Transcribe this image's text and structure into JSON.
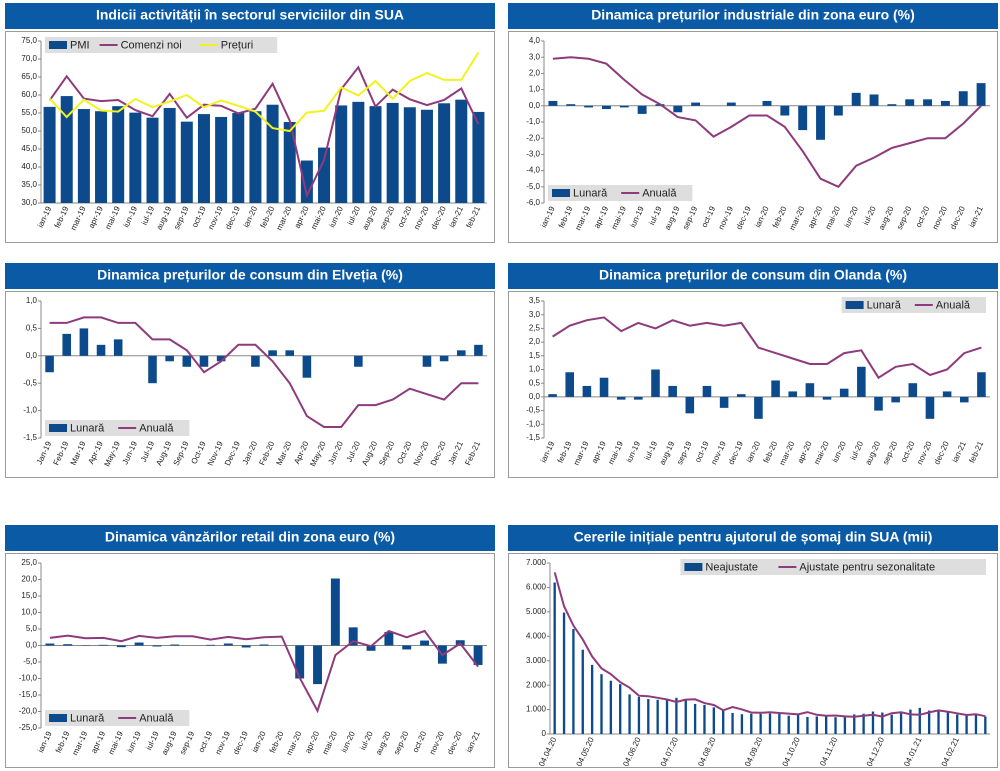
{
  "chart_data": [
    {
      "type": "combo",
      "title": "Indicii activității în sectorul serviciilor din SUA",
      "categories": [
        "ian-19",
        "feb-19",
        "mar-19",
        "apr-19",
        "mai-19",
        "iun-19",
        "iul-19",
        "aug-19",
        "sep-19",
        "oct-19",
        "nov-19",
        "dec-19",
        "ian-20",
        "feb-20",
        "mar-20",
        "apr-20",
        "mai-20",
        "iun-20",
        "iul-20",
        "aug-20",
        "sep-20",
        "oct-20",
        "nov-20",
        "dec-20",
        "ian-21",
        "feb-21"
      ],
      "series": [
        {
          "name": "PMI",
          "kind": "bar",
          "color": "#0d4a8c",
          "values": [
            56.7,
            59.7,
            56.1,
            55.5,
            56.9,
            55.1,
            53.7,
            56.4,
            52.6,
            54.7,
            53.9,
            55.0,
            55.5,
            57.3,
            52.5,
            41.8,
            45.4,
            57.1,
            58.1,
            56.9,
            57.8,
            56.6,
            55.9,
            57.7,
            58.7,
            55.3
          ]
        },
        {
          "name": "Comenzi noi",
          "kind": "line",
          "color": "#8e3a7c",
          "values": [
            58.5,
            65.2,
            59.0,
            58.3,
            58.6,
            55.8,
            54.1,
            60.3,
            53.7,
            57.3,
            57.0,
            54.9,
            56.2,
            63.1,
            52.9,
            32.1,
            41.9,
            61.6,
            67.7,
            56.8,
            61.5,
            58.8,
            57.2,
            58.6,
            61.8,
            51.9
          ]
        },
        {
          "name": "Prețuri",
          "kind": "line",
          "color": "#f2f21f",
          "values": [
            59.0,
            53.9,
            58.7,
            55.7,
            55.4,
            58.9,
            56.6,
            58.2,
            60.0,
            56.6,
            58.5,
            57.0,
            55.4,
            50.8,
            50.0,
            55.1,
            55.6,
            62.1,
            59.9,
            63.9,
            59.0,
            63.9,
            66.1,
            64.2,
            64.2,
            71.8
          ]
        }
      ],
      "ylim": [
        30,
        75
      ],
      "yticks": [
        {
          "value": 30,
          "label": "30,0"
        },
        {
          "value": 35,
          "label": "35,0"
        },
        {
          "value": 40,
          "label": "40,0"
        },
        {
          "value": 45,
          "label": "45,0"
        },
        {
          "value": 50,
          "label": "50,0"
        },
        {
          "value": 55,
          "label": "55,0"
        },
        {
          "value": 60,
          "label": "60,0"
        },
        {
          "value": 65,
          "label": "65,0"
        },
        {
          "value": 70,
          "label": "70,0"
        },
        {
          "value": 75,
          "label": "75,0"
        }
      ],
      "legend": "top-left"
    },
    {
      "type": "combo",
      "title": "Dinamica prețurilor industriale din zona euro (%)",
      "categories": [
        "ian-19",
        "feb-19",
        "mar-19",
        "apr-19",
        "mai-19",
        "iun-19",
        "iul-19",
        "aug-19",
        "sep-19",
        "oct-19",
        "nov-19",
        "dec-19",
        "ian-20",
        "feb-20",
        "mar-20",
        "apr-20",
        "mai-20",
        "iun-20",
        "iul-20",
        "aug-20",
        "sep-20",
        "oct-20",
        "nov-20",
        "dec-20",
        "ian-21"
      ],
      "series": [
        {
          "name": "Lunară",
          "kind": "bar",
          "color": "#0d4a8c",
          "values": [
            0.3,
            0.1,
            -0.1,
            -0.2,
            -0.1,
            -0.5,
            0.1,
            -0.4,
            0.2,
            0.0,
            0.2,
            0.0,
            0.3,
            -0.6,
            -1.5,
            -2.1,
            -0.6,
            0.8,
            0.7,
            0.1,
            0.4,
            0.4,
            0.3,
            0.9,
            1.4
          ]
        },
        {
          "name": "Anuală",
          "kind": "line",
          "color": "#8e3a7c",
          "values": [
            2.9,
            3.0,
            2.9,
            2.6,
            1.6,
            0.7,
            0.1,
            -0.7,
            -0.9,
            -1.9,
            -1.3,
            -0.6,
            -0.6,
            -1.3,
            -2.8,
            -4.5,
            -5.0,
            -3.7,
            -3.2,
            -2.6,
            -2.3,
            -2.0,
            -2.0,
            -1.1,
            0.0
          ]
        }
      ],
      "ylim": [
        -6,
        4
      ],
      "yticks": [
        {
          "value": -6,
          "label": "-6,0"
        },
        {
          "value": -5,
          "label": "-5,0"
        },
        {
          "value": -4,
          "label": "-4,0"
        },
        {
          "value": -3,
          "label": "-3,0"
        },
        {
          "value": -2,
          "label": "-2,0"
        },
        {
          "value": -1,
          "label": "-1,0"
        },
        {
          "value": 0,
          "label": "0,0"
        },
        {
          "value": 1,
          "label": "1,0"
        },
        {
          "value": 2,
          "label": "2,0"
        },
        {
          "value": 3,
          "label": "3,0"
        },
        {
          "value": 4,
          "label": "4,0"
        }
      ],
      "legend": "bottom-left"
    },
    {
      "type": "combo",
      "title": "Dinamica prețurilor de consum din Elveția (%)",
      "categories": [
        "Jan-19",
        "Feb-19",
        "Mar-19",
        "Apr-19",
        "May-19",
        "Jun-19",
        "Jul-19",
        "Aug-19",
        "Sep-19",
        "Oct-19",
        "Nov-19",
        "Dec-19",
        "Jan-20",
        "Feb-20",
        "Mar-20",
        "Apr-20",
        "May-20",
        "Jun-20",
        "Jul-20",
        "Aug-20",
        "Sep-20",
        "Oct-20",
        "Nov-20",
        "Dec-20",
        "Jan-21",
        "Feb-21"
      ],
      "series": [
        {
          "name": "Lunară",
          "kind": "bar",
          "color": "#0d4a8c",
          "values": [
            -0.3,
            0.4,
            0.5,
            0.2,
            0.3,
            0.0,
            -0.5,
            -0.1,
            -0.2,
            -0.2,
            -0.1,
            0.0,
            -0.2,
            0.1,
            0.1,
            -0.4,
            0.0,
            0.0,
            -0.2,
            0.0,
            0.0,
            0.0,
            -0.2,
            -0.1,
            0.1,
            0.2
          ]
        },
        {
          "name": "Anuală",
          "kind": "line",
          "color": "#8e3a7c",
          "values": [
            0.6,
            0.6,
            0.7,
            0.7,
            0.6,
            0.6,
            0.3,
            0.3,
            0.1,
            -0.3,
            -0.1,
            0.2,
            0.2,
            -0.1,
            -0.5,
            -1.1,
            -1.3,
            -1.3,
            -0.9,
            -0.9,
            -0.8,
            -0.6,
            -0.7,
            -0.8,
            -0.5,
            -0.5
          ]
        }
      ],
      "ylim": [
        -1.5,
        1.0
      ],
      "yticks": [
        {
          "value": -1.5,
          "label": "-1,5"
        },
        {
          "value": -1.0,
          "label": "-1,0"
        },
        {
          "value": -0.5,
          "label": "-0,5"
        },
        {
          "value": 0,
          "label": "0,0"
        },
        {
          "value": 0.5,
          "label": "0,5"
        },
        {
          "value": 1.0,
          "label": "1,0"
        }
      ],
      "legend": "bottom-left"
    },
    {
      "type": "combo",
      "title": "Dinamica prețurilor de consum din Olanda (%)",
      "categories": [
        "ian-19",
        "feb-19",
        "mar-19",
        "apr-19",
        "mai-19",
        "iun-19",
        "iul-19",
        "aug-19",
        "sep-19",
        "oct-19",
        "nov-19",
        "dec-19",
        "ian-20",
        "feb-20",
        "mar-20",
        "apr-20",
        "mai-20",
        "iun-20",
        "iul-20",
        "aug-20",
        "sep-20",
        "oct-20",
        "nov-20",
        "dec-20",
        "ian-21",
        "feb-21"
      ],
      "series": [
        {
          "name": "Lunară",
          "kind": "bar",
          "color": "#0d4a8c",
          "values": [
            0.1,
            0.9,
            0.4,
            0.7,
            -0.1,
            -0.1,
            1.0,
            0.4,
            -0.6,
            0.4,
            -0.4,
            0.1,
            -0.8,
            0.6,
            0.2,
            0.5,
            -0.1,
            0.3,
            1.1,
            -0.5,
            -0.2,
            0.5,
            -0.8,
            0.2,
            -0.2,
            0.9
          ]
        },
        {
          "name": "Anuală",
          "kind": "line",
          "color": "#8e3a7c",
          "values": [
            2.2,
            2.6,
            2.8,
            2.9,
            2.4,
            2.7,
            2.5,
            2.8,
            2.6,
            2.7,
            2.6,
            2.7,
            1.8,
            1.6,
            1.4,
            1.2,
            1.2,
            1.6,
            1.7,
            0.7,
            1.1,
            1.2,
            0.8,
            1.0,
            1.6,
            1.8
          ]
        }
      ],
      "ylim": [
        -1.5,
        3.5
      ],
      "yticks": [
        {
          "value": -1.5,
          "label": "-1,5"
        },
        {
          "value": -1.0,
          "label": "-1,0"
        },
        {
          "value": -0.5,
          "label": "-0,5"
        },
        {
          "value": 0,
          "label": "0,0"
        },
        {
          "value": 0.5,
          "label": "0,5"
        },
        {
          "value": 1.0,
          "label": "1,0"
        },
        {
          "value": 1.5,
          "label": "1,5"
        },
        {
          "value": 2.0,
          "label": "2,0"
        },
        {
          "value": 2.5,
          "label": "2,5"
        },
        {
          "value": 3.0,
          "label": "3,0"
        },
        {
          "value": 3.5,
          "label": "3,5"
        }
      ],
      "legend": "top-right"
    },
    {
      "type": "combo",
      "title": "Dinamica vânzărilor retail din zona euro (%)",
      "categories": [
        "ian-19",
        "feb-19",
        "mar-19",
        "apr-19",
        "mai-19",
        "iun-19",
        "iul-19",
        "aug-19",
        "sep-19",
        "oct-19",
        "nov-19",
        "dec-19",
        "ian-20",
        "feb-20",
        "mar-20",
        "apr-20",
        "mai-20",
        "iun-20",
        "iul-20",
        "aug-20",
        "sep-20",
        "oct-20",
        "nov-20",
        "dec-20",
        "ian-21"
      ],
      "series": [
        {
          "name": "Lunară",
          "kind": "bar",
          "color": "#0d4a8c",
          "values": [
            0.6,
            0.4,
            0.1,
            0.2,
            -0.5,
            0.9,
            -0.3,
            0.3,
            0.0,
            0.2,
            0.6,
            -0.6,
            0.3,
            0.0,
            -10.0,
            -11.7,
            20.3,
            5.5,
            -1.6,
            4.1,
            -1.2,
            1.5,
            -5.5,
            1.6,
            -5.9
          ]
        },
        {
          "name": "Anuală",
          "kind": "line",
          "color": "#8e3a7c",
          "values": [
            2.3,
            3.0,
            2.2,
            2.3,
            1.3,
            2.9,
            2.3,
            2.8,
            2.8,
            1.8,
            2.6,
            1.9,
            2.5,
            2.7,
            -9.8,
            -19.8,
            -2.9,
            1.3,
            -0.2,
            4.4,
            2.5,
            4.4,
            -2.9,
            0.6,
            -6.4
          ]
        }
      ],
      "ylim": [
        -25,
        25
      ],
      "yticks": [
        {
          "value": -25,
          "label": "-25,0"
        },
        {
          "value": -20,
          "label": "-20,0"
        },
        {
          "value": -15,
          "label": "-15,0"
        },
        {
          "value": -10,
          "label": "-10,0"
        },
        {
          "value": -5,
          "label": "-5,0"
        },
        {
          "value": 0,
          "label": "0,0"
        },
        {
          "value": 5,
          "label": "5,0"
        },
        {
          "value": 10,
          "label": "10,0"
        },
        {
          "value": 15,
          "label": "15,0"
        },
        {
          "value": 20,
          "label": "20,0"
        },
        {
          "value": 25,
          "label": "25,0"
        }
      ],
      "legend": "bottom-left"
    },
    {
      "type": "combo",
      "title": "Cererile inițiale pentru ajutorul de șomaj din SUA (mii)",
      "categories": [
        "04.04.20",
        null,
        null,
        null,
        "04.05.20",
        null,
        null,
        null,
        null,
        "04.06.20",
        null,
        null,
        null,
        "04.07.20",
        null,
        null,
        null,
        "04.08.20",
        null,
        null,
        null,
        null,
        "04.09.20",
        null,
        null,
        null,
        "04.10.20",
        null,
        null,
        null,
        "04.11.20",
        null,
        null,
        null,
        null,
        "04.12.20",
        null,
        null,
        null,
        "04.01.21",
        null,
        null,
        null,
        "04.02.21",
        null,
        null,
        null
      ],
      "series": [
        {
          "name": "Neajustate",
          "kind": "bar",
          "color": "#0d4a8c",
          "values": [
            6200,
            4970,
            4300,
            3450,
            2830,
            2450,
            2180,
            2040,
            1620,
            1520,
            1430,
            1400,
            1440,
            1480,
            1380,
            1230,
            1190,
            1090,
            980,
            860,
            810,
            830,
            830,
            840,
            890,
            750,
            780,
            700,
            720,
            740,
            690,
            760,
            800,
            830,
            920,
            880,
            790,
            880,
            1000,
            1070,
            960,
            920,
            880,
            800,
            780,
            800,
            720
          ]
        },
        {
          "name": "Ajustate pentru sezonalitate",
          "kind": "line",
          "color": "#8e3a7c",
          "values": [
            6615,
            5237,
            4442,
            3867,
            3176,
            2687,
            2446,
            2123,
            1897,
            1566,
            1542,
            1480,
            1413,
            1310,
            1409,
            1422,
            1263,
            1186,
            971,
            1104,
            1006,
            881,
            866,
            893,
            860,
            837,
            804,
            898,
            787,
            751,
            757,
            719,
            709,
            748,
            787,
            711,
            853,
            892,
            803,
            787,
            885,
            965,
            914,
            847,
            779,
            812,
            730
          ]
        }
      ],
      "ylim": [
        0,
        7000
      ],
      "yticks": [
        0,
        {
          "value": 1000,
          "label": "1.000"
        },
        {
          "value": 2000,
          "label": "2.000"
        },
        {
          "value": 3000,
          "label": "3.000"
        },
        {
          "value": 4000,
          "label": "4.000"
        },
        {
          "value": 5000,
          "label": "5.000"
        },
        {
          "value": 6000,
          "label": "6.000"
        },
        {
          "value": 7000,
          "label": "7.000"
        }
      ],
      "legend": "top-right"
    }
  ]
}
